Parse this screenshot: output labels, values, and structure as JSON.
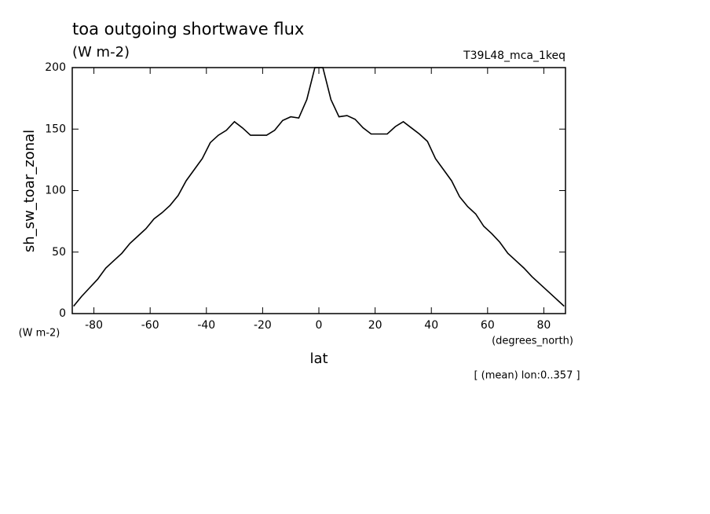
{
  "chart_data": {
    "type": "line",
    "title": "toa outgoing shortwave flux",
    "subtitle": "(W m-2)",
    "dataset": "T39L48_mca_1keq",
    "y_label": "sh_sw_toar_zonal",
    "y_units": "(W m-2)",
    "x_label": "lat",
    "x_units": "(degrees_north)",
    "note": "[ (mean) lon:0..357 ]",
    "x": [
      -87.23,
      -84.37,
      -81.51,
      -78.65,
      -75.79,
      -72.93,
      -70.07,
      -67.21,
      -64.35,
      -61.49,
      -58.63,
      -55.77,
      -52.91,
      -50.05,
      -47.19,
      -44.33,
      -41.47,
      -38.61,
      -35.75,
      -32.89,
      -30.03,
      -27.17,
      -24.31,
      -21.45,
      -18.59,
      -15.73,
      -12.87,
      -10.01,
      -7.15,
      -4.29,
      -1.43,
      1.43,
      4.29,
      7.15,
      10.01,
      12.87,
      15.73,
      18.59,
      21.45,
      24.31,
      27.17,
      30.03,
      32.89,
      35.75,
      38.61,
      41.47,
      44.33,
      47.19,
      50.05,
      52.91,
      55.77,
      58.63,
      61.49,
      64.35,
      67.21,
      70.07,
      72.93,
      75.79,
      78.65,
      81.51,
      84.37,
      87.23
    ],
    "series": [
      {
        "color": "#000000",
        "values": [
          6,
          14,
          21,
          28,
          37,
          43,
          49,
          57,
          63,
          69,
          77,
          82,
          88,
          96,
          108,
          117,
          126,
          139,
          145,
          149,
          156,
          151,
          145,
          145,
          145,
          149,
          157,
          160,
          159,
          174,
          200,
          200,
          174,
          160,
          161,
          158,
          151,
          146,
          146,
          146,
          152,
          156,
          151,
          146,
          140,
          126,
          117,
          108,
          95,
          87,
          81,
          71,
          65,
          58,
          49,
          43,
          37,
          30,
          24,
          18,
          12,
          6
        ]
      }
    ],
    "xlim": [
      -87.7,
      87.7
    ],
    "ylim": [
      0,
      200
    ],
    "xticks": [
      -80,
      -60,
      -40,
      -20,
      0,
      20,
      40,
      60,
      80
    ],
    "yticks": [
      0,
      50,
      100,
      150,
      200
    ]
  }
}
